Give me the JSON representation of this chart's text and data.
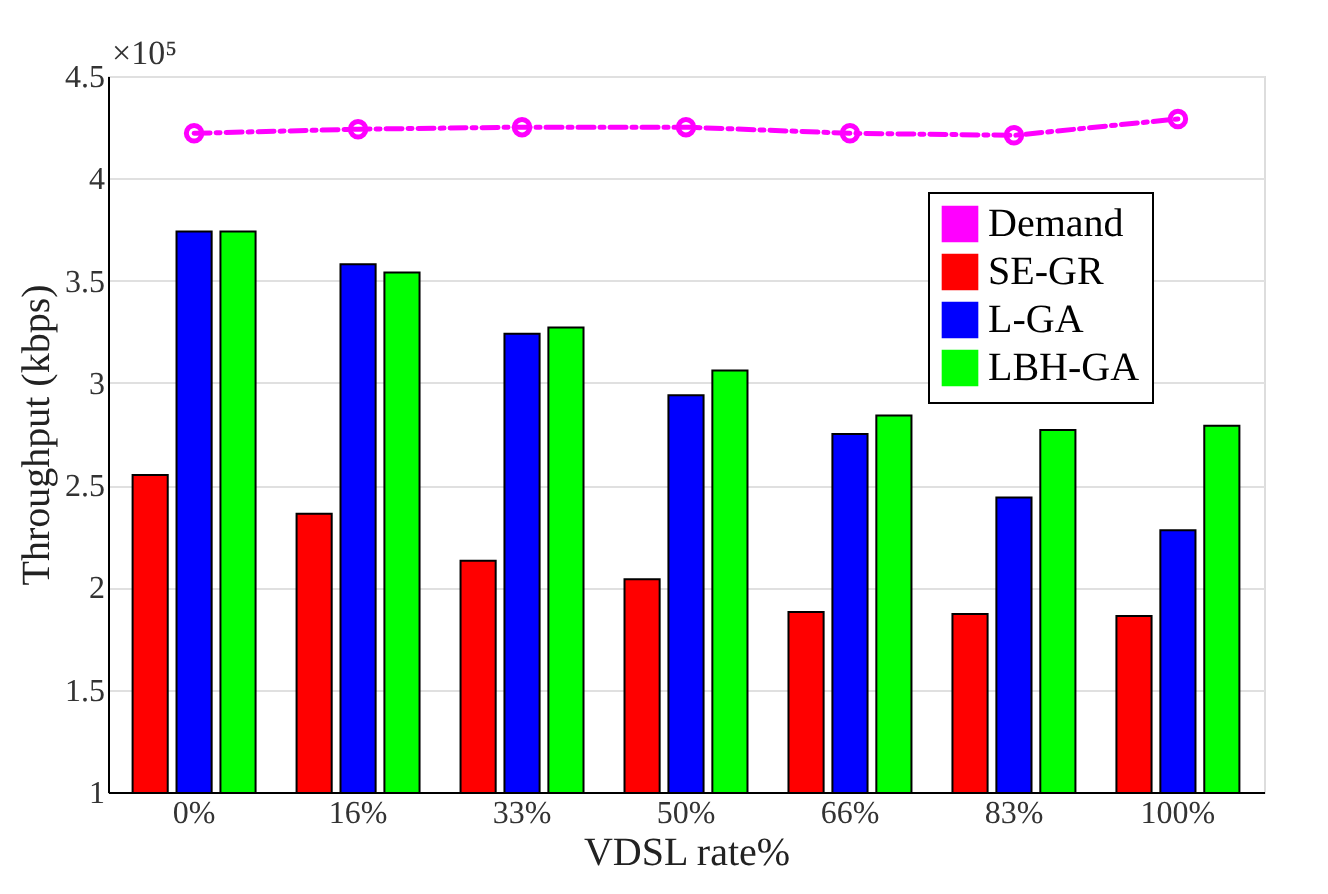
{
  "chart_data": {
    "type": "bar",
    "xlabel": "VDSL rate%",
    "ylabel": "Throughput (kbps)",
    "categories": [
      "0%",
      "16%",
      "33%",
      "50%",
      "66%",
      "83%",
      "100%"
    ],
    "series": [
      {
        "name": "Demand",
        "type": "line",
        "color": "#ff00ff",
        "marker": "circle",
        "line_style": "dashed",
        "values": [
          4.22,
          4.24,
          4.25,
          4.25,
          4.22,
          4.21,
          4.29
        ]
      },
      {
        "name": "SE-GR",
        "color": "#ff0000",
        "values": [
          2.55,
          2.36,
          2.13,
          2.04,
          1.88,
          1.87,
          1.86
        ]
      },
      {
        "name": "L-GA",
        "color": "#0000ff",
        "values": [
          3.74,
          3.58,
          3.24,
          2.94,
          2.75,
          2.44,
          2.28
        ]
      },
      {
        "name": "LBH-GA",
        "color": "#00ff00",
        "values": [
          3.74,
          3.54,
          3.27,
          3.06,
          2.84,
          2.77,
          2.79
        ]
      }
    ],
    "ylim": [
      1,
      4.5
    ],
    "yticks": [
      1,
      1.5,
      2,
      2.5,
      3,
      3.5,
      4,
      4.5
    ],
    "annotations": [
      "×10⁵"
    ],
    "grid": "y",
    "legend": "top right"
  }
}
